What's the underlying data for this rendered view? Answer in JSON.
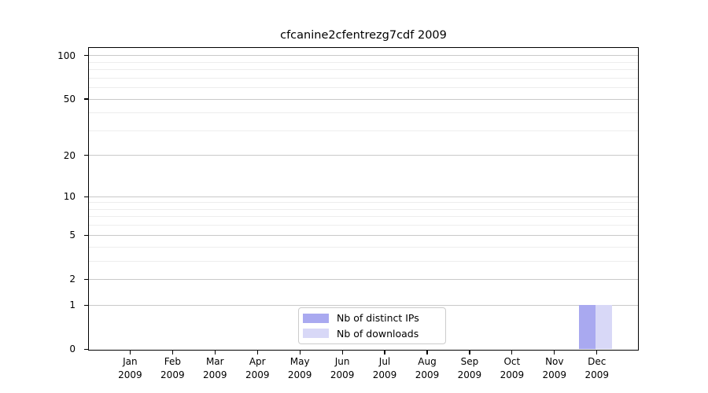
{
  "chart_data": {
    "type": "bar",
    "title": "cfcanine2cfentrezg7cdf 2009",
    "categories": [
      {
        "month": "Jan",
        "year": "2009"
      },
      {
        "month": "Feb",
        "year": "2009"
      },
      {
        "month": "Mar",
        "year": "2009"
      },
      {
        "month": "Apr",
        "year": "2009"
      },
      {
        "month": "May",
        "year": "2009"
      },
      {
        "month": "Jun",
        "year": "2009"
      },
      {
        "month": "Jul",
        "year": "2009"
      },
      {
        "month": "Aug",
        "year": "2009"
      },
      {
        "month": "Sep",
        "year": "2009"
      },
      {
        "month": "Oct",
        "year": "2009"
      },
      {
        "month": "Nov",
        "year": "2009"
      },
      {
        "month": "Dec",
        "year": "2009"
      }
    ],
    "series": [
      {
        "name": "Nb of distinct IPs",
        "color": "#a9a9f0",
        "values": [
          0,
          0,
          0,
          0,
          0,
          0,
          0,
          0,
          0,
          0,
          0,
          1
        ]
      },
      {
        "name": "Nb of downloads",
        "color": "#d8d8f7",
        "values": [
          0,
          0,
          0,
          0,
          0,
          0,
          0,
          0,
          0,
          0,
          0,
          1
        ]
      }
    ],
    "y_axis": {
      "scale": "log1p",
      "ticks": [
        0,
        1,
        2,
        5,
        10,
        20,
        50,
        100
      ],
      "minor_ticks": [
        3,
        4,
        6,
        7,
        8,
        9,
        30,
        40,
        60,
        70,
        80,
        90
      ],
      "range_max": 113
    },
    "legend": {
      "location": "lower center",
      "frame": true
    },
    "grid": true
  },
  "colors": {
    "major_grid": "#c9c9c9",
    "minor_grid": "#ededed",
    "axis": "#000000",
    "legend_border": "#cccccc",
    "background": "#ffffff"
  }
}
